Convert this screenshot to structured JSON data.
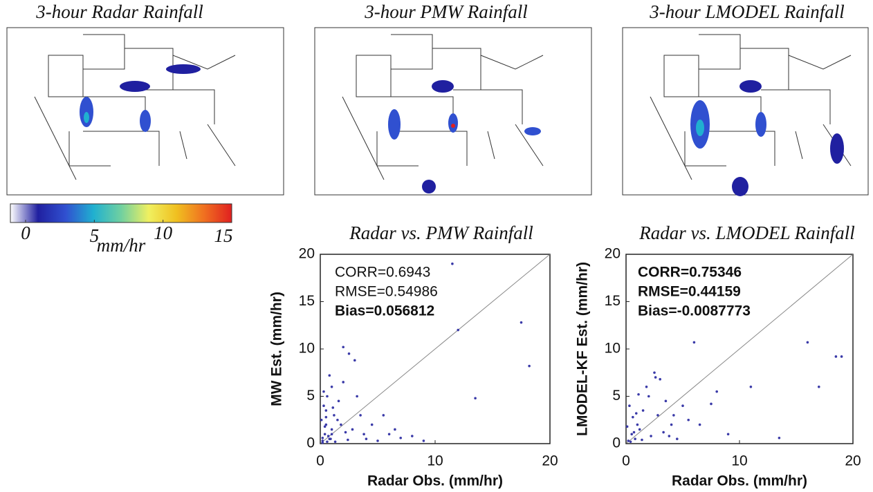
{
  "chart_data": [
    {
      "type": "map",
      "title": "3-hour Radar Rainfall"
    },
    {
      "type": "map",
      "title": "3-hour PMW Rainfall"
    },
    {
      "type": "map",
      "title": "3-hour LMODEL Rainfall"
    },
    {
      "type": "colorbar",
      "label": "mm/hr",
      "xlim": [
        0,
        15
      ],
      "xticks": [
        0,
        5,
        10,
        15
      ],
      "colors": [
        "#ffffff",
        "#2020a0",
        "#3050d0",
        "#20b0d0",
        "#70d0a0",
        "#f0f060",
        "#f0c020",
        "#f07020",
        "#e02020"
      ]
    },
    {
      "type": "scatter",
      "title": "Radar vs. PMW Rainfall",
      "x_label": "Radar Obs. (mm/hr)",
      "y_label": "MW Est. (mm/hr)",
      "annotations": [
        "CORR=0.6943",
        "RMSE=0.54986",
        "Bias=0.056812"
      ],
      "xlim": [
        0,
        20
      ],
      "ylim": [
        0,
        20
      ],
      "xticks": [
        0,
        10,
        20
      ],
      "yticks": [
        0,
        5,
        10,
        15,
        20
      ],
      "color": "#3a3aa8",
      "x": [
        0.2,
        0.4,
        0.5,
        0.8,
        1.0,
        1.2,
        0.3,
        0.6,
        1.5,
        2.0,
        2.5,
        3.0,
        0.5,
        1.0,
        0.2,
        0.7,
        1.8,
        2.2,
        3.5,
        4.0,
        4.5,
        5.0,
        6.0,
        7.0,
        1.0,
        0.5,
        0.3,
        1.3,
        2.8,
        0.8,
        1.6,
        2.4,
        0.4,
        0.1,
        0.9,
        3.2,
        5.5,
        8.0,
        11.5,
        12.0,
        17.5,
        18.2,
        9.0,
        6.5,
        13.5,
        2.0,
        1.1,
        0.6,
        0.2,
        3.8
      ],
      "y": [
        0.3,
        1.0,
        2.0,
        0.5,
        1.5,
        3.0,
        4.0,
        5.0,
        2.5,
        6.5,
        9.5,
        8.8,
        3.5,
        1.0,
        0.1,
        0.8,
        2.0,
        1.2,
        3.0,
        0.5,
        2.0,
        0.3,
        1.0,
        0.6,
        6.0,
        2.8,
        5.5,
        0.2,
        1.5,
        7.2,
        4.5,
        0.4,
        1.8,
        2.5,
        0.5,
        5.0,
        3.0,
        0.8,
        19.0,
        12.0,
        12.8,
        8.2,
        0.3,
        1.5,
        4.8,
        10.2,
        3.8,
        0.2,
        0.6,
        1.0
      ]
    },
    {
      "type": "scatter",
      "title": "Radar vs. LMODEL Rainfall",
      "x_label": "Radar Obs. (mm/hr)",
      "y_label": "LMODEL-KF Est. (mm/hr)",
      "annotations": [
        "CORR=0.75346",
        "RMSE=0.44159",
        "Bias=-0.0087773"
      ],
      "xlim": [
        0,
        20
      ],
      "ylim": [
        0,
        20
      ],
      "xticks": [
        0,
        10,
        20
      ],
      "yticks": [
        0,
        5,
        10,
        15,
        20
      ],
      "color": "#3a3aa8",
      "x": [
        0.2,
        0.5,
        0.8,
        1.0,
        1.5,
        2.0,
        2.5,
        3.0,
        3.5,
        4.0,
        0.3,
        0.6,
        1.2,
        1.8,
        2.2,
        2.8,
        3.3,
        4.5,
        5.0,
        6.0,
        6.5,
        7.5,
        8.0,
        9.0,
        11.0,
        16.0,
        17.0,
        18.5,
        19.0,
        13.5,
        0.4,
        0.9,
        1.4,
        0.1,
        2.6,
        1.1,
        0.7,
        3.8,
        5.5,
        4.2
      ],
      "y": [
        0.3,
        1.0,
        0.5,
        2.0,
        3.5,
        5.0,
        7.5,
        6.8,
        4.5,
        2.0,
        4.0,
        2.8,
        1.5,
        6.0,
        0.8,
        3.0,
        1.2,
        0.5,
        4.0,
        10.7,
        2.0,
        4.2,
        5.5,
        1.0,
        6.0,
        10.7,
        6.0,
        9.2,
        9.2,
        0.6,
        0.2,
        3.2,
        0.4,
        1.8,
        7.0,
        5.2,
        1.2,
        0.8,
        2.5,
        3.0
      ]
    }
  ]
}
